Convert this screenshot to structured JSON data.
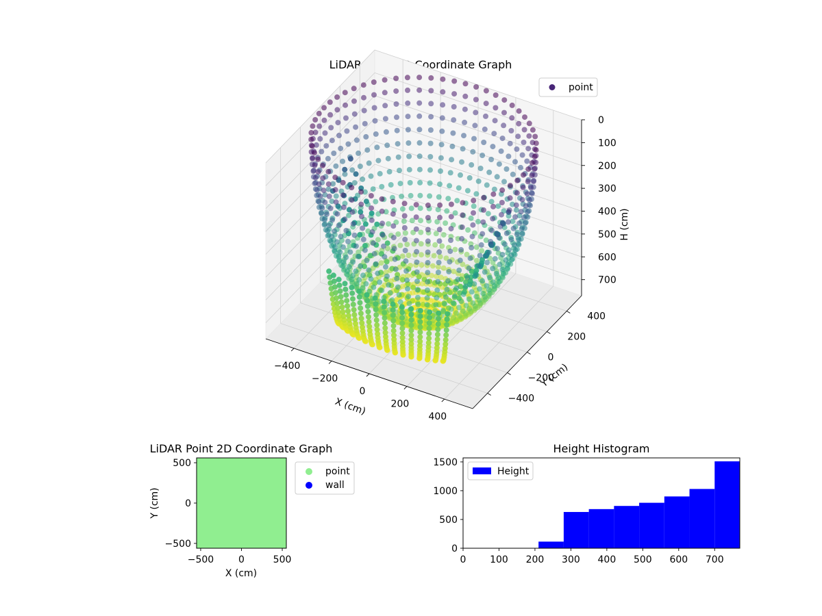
{
  "chart_data": [
    {
      "type": "scatter",
      "title": "LiDAR Point 3D Coordinate Graph",
      "xlabel": "X (cm)",
      "ylabel": "Y (cm)",
      "zlabel": "H (cm)",
      "xlim": [
        -550,
        550
      ],
      "ylim": [
        -550,
        550
      ],
      "zlim": [
        0,
        770
      ],
      "z_inverted": true,
      "xticks": [
        -400,
        -200,
        0,
        200,
        400
      ],
      "yticks": [
        -400,
        -200,
        0,
        200,
        400
      ],
      "zticks": [
        0,
        100,
        200,
        300,
        400,
        500,
        600,
        700
      ],
      "grid": true,
      "legend": {
        "position": "top-right",
        "entries": [
          "point"
        ]
      },
      "colormap": "viridis",
      "series": [
        {
          "name": "point",
          "marker_color": "#482677",
          "shape": "bowl",
          "points": [
            {
              "x": 0,
              "y": 0,
              "h": 770
            },
            {
              "x": 0,
              "y": 0,
              "h": 640
            },
            {
              "x": -60,
              "y": -340,
              "h": 650
            },
            {
              "x": 60,
              "y": -340,
              "h": 650
            },
            {
              "x": -300,
              "y": -150,
              "h": 600
            },
            {
              "x": 250,
              "y": -230,
              "h": 640
            },
            {
              "x": -480,
              "y": 100,
              "h": 380
            },
            {
              "x": 480,
              "y": -50,
              "h": 390
            },
            {
              "x": 0,
              "y": 520,
              "h": 220
            },
            {
              "x": -530,
              "y": 0,
              "h": 0
            },
            {
              "x": 530,
              "y": 0,
              "h": 0
            },
            {
              "x": 0,
              "y": -530,
              "h": 0
            },
            {
              "x": 0,
              "y": 530,
              "h": 0
            }
          ]
        }
      ]
    },
    {
      "type": "scatter",
      "title": "LiDAR Point 2D Coordinate Graph",
      "xlabel": "X (cm)",
      "ylabel": "Y (cm)",
      "xlim": [
        -550,
        550
      ],
      "ylim": [
        -560,
        560
      ],
      "xticks": [
        -500,
        0,
        500
      ],
      "yticks": [
        -500,
        0,
        500
      ],
      "legend": {
        "position": "outside-right",
        "entries": [
          "point",
          "wall"
        ]
      },
      "series": [
        {
          "name": "point",
          "color": "#90ee90",
          "extent": {
            "x": [
              -550,
              550
            ],
            "y": [
              -560,
              560
            ]
          }
        },
        {
          "name": "wall",
          "color": "#0000ff"
        }
      ]
    },
    {
      "type": "bar",
      "title": "Height Histogram",
      "xlim": [
        0,
        770
      ],
      "ylim": [
        0,
        1570
      ],
      "xticks": [
        0,
        100,
        200,
        300,
        400,
        500,
        600,
        700
      ],
      "yticks": [
        0,
        500,
        1000,
        1500
      ],
      "legend": {
        "position": "top-left",
        "entries": [
          "Height"
        ]
      },
      "series": [
        {
          "name": "Height",
          "color": "#0000ff",
          "bins": [
            {
              "x0": 0,
              "x1": 70,
              "count": 0
            },
            {
              "x0": 70,
              "x1": 140,
              "count": 0
            },
            {
              "x0": 140,
              "x1": 210,
              "count": 0
            },
            {
              "x0": 210,
              "x1": 280,
              "count": 115
            },
            {
              "x0": 280,
              "x1": 350,
              "count": 630
            },
            {
              "x0": 350,
              "x1": 420,
              "count": 680
            },
            {
              "x0": 420,
              "x1": 490,
              "count": 735
            },
            {
              "x0": 490,
              "x1": 560,
              "count": 790
            },
            {
              "x0": 560,
              "x1": 630,
              "count": 900
            },
            {
              "x0": 630,
              "x1": 700,
              "count": 1030
            },
            {
              "x0": 700,
              "x1": 770,
              "count": 1510
            }
          ]
        }
      ]
    }
  ]
}
